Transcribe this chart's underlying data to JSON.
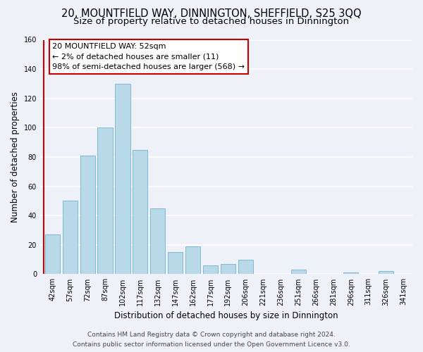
{
  "title": "20, MOUNTFIELD WAY, DINNINGTON, SHEFFIELD, S25 3QQ",
  "subtitle": "Size of property relative to detached houses in Dinnington",
  "xlabel": "Distribution of detached houses by size in Dinnington",
  "ylabel": "Number of detached properties",
  "bar_labels": [
    "42sqm",
    "57sqm",
    "72sqm",
    "87sqm",
    "102sqm",
    "117sqm",
    "132sqm",
    "147sqm",
    "162sqm",
    "177sqm",
    "192sqm",
    "206sqm",
    "221sqm",
    "236sqm",
    "251sqm",
    "266sqm",
    "281sqm",
    "296sqm",
    "311sqm",
    "326sqm",
    "341sqm"
  ],
  "bar_values": [
    27,
    50,
    81,
    100,
    130,
    85,
    45,
    15,
    19,
    6,
    7,
    10,
    0,
    0,
    3,
    0,
    0,
    1,
    0,
    2,
    0
  ],
  "bar_color": "#b8d9e8",
  "bar_edge_color": "#7fb8d4",
  "highlight_line_color": "#cc0000",
  "annotation_title": "20 MOUNTFIELD WAY: 52sqm",
  "annotation_line1": "← 2% of detached houses are smaller (11)",
  "annotation_line2": "98% of semi-detached houses are larger (568) →",
  "annotation_box_color": "#ffffff",
  "annotation_box_edge_color": "#cc0000",
  "ylim": [
    0,
    160
  ],
  "yticks": [
    0,
    20,
    40,
    60,
    80,
    100,
    120,
    140,
    160
  ],
  "footer_line1": "Contains HM Land Registry data © Crown copyright and database right 2024.",
  "footer_line2": "Contains public sector information licensed under the Open Government Licence v3.0.",
  "background_color": "#eef2f8",
  "plot_bg_color": "#eef2f8",
  "grid_color": "#ffffff",
  "title_fontsize": 10.5,
  "subtitle_fontsize": 9.5,
  "axis_label_fontsize": 8.5,
  "tick_fontsize": 7,
  "annotation_fontsize": 8,
  "footer_fontsize": 6.5
}
